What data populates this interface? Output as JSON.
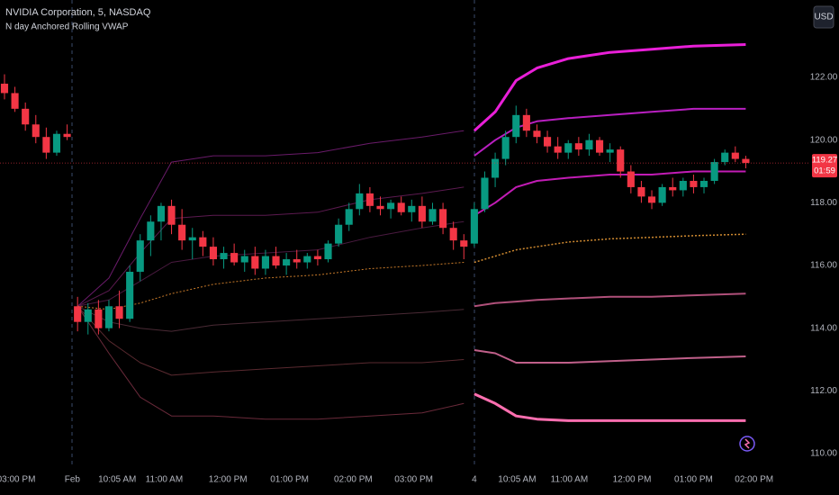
{
  "chart_data": {
    "type": "candlestick",
    "title": "NVIDIA Corporation, 5, NASDAQ",
    "indicator": "N day Anchored Rolling VWAP",
    "currency": "USD",
    "countdown": "01:59",
    "last_price": 119.27,
    "last_price_color": "#f23645",
    "up_color": "#089981",
    "down_color": "#f23645",
    "xlim": [
      -0.43,
      77
    ],
    "ylim": [
      109.54,
      124.47
    ],
    "yticks": [
      {
        "value": 110,
        "label": "110.00"
      },
      {
        "value": 112,
        "label": "112.00"
      },
      {
        "value": 114,
        "label": "114.00"
      },
      {
        "value": 116,
        "label": "116.00"
      },
      {
        "value": 118,
        "label": "118.00"
      },
      {
        "value": 120,
        "label": "120.00"
      },
      {
        "value": 122,
        "label": "122.00"
      }
    ],
    "xticks": [
      {
        "value": 0.3,
        "label": "03:00 PM"
      },
      {
        "value": 6.5,
        "label": "Feb"
      },
      {
        "value": 10.8,
        "label": "10:05 AM"
      },
      {
        "value": 15.3,
        "label": "11:00 AM"
      },
      {
        "value": 21.4,
        "label": "12:00 PM"
      },
      {
        "value": 27.3,
        "label": "01:00 PM"
      },
      {
        "value": 33.4,
        "label": "02:00 PM"
      },
      {
        "value": 39.2,
        "label": "03:00 PM"
      },
      {
        "value": 45,
        "label": "4"
      },
      {
        "value": 49.1,
        "label": "10:05 AM"
      },
      {
        "value": 54.1,
        "label": "11:00 AM"
      },
      {
        "value": 60.1,
        "label": "12:00 PM"
      },
      {
        "value": 66,
        "label": "01:00 PM"
      },
      {
        "value": 71.8,
        "label": "02:00 PM"
      }
    ],
    "candles": [
      [
        121.8,
        122.1,
        121.3,
        121.5
      ],
      [
        121.5,
        121.7,
        120.9,
        121.0
      ],
      [
        121.0,
        121.2,
        120.3,
        120.5
      ],
      [
        120.5,
        120.8,
        119.9,
        120.1
      ],
      [
        120.1,
        120.4,
        119.4,
        119.6
      ],
      [
        119.6,
        120.3,
        119.5,
        120.2
      ],
      [
        120.2,
        120.5,
        120.0,
        120.1
      ],
      [
        114.7,
        115.0,
        113.9,
        114.2
      ],
      [
        114.2,
        114.8,
        113.8,
        114.6
      ],
      [
        114.6,
        114.9,
        113.8,
        114.0
      ],
      [
        114.0,
        114.9,
        113.9,
        114.7
      ],
      [
        114.7,
        115.2,
        114.0,
        114.3
      ],
      [
        114.3,
        116.0,
        114.2,
        115.8
      ],
      [
        115.8,
        117.0,
        115.5,
        116.8
      ],
      [
        116.8,
        117.6,
        116.3,
        117.4
      ],
      [
        117.4,
        118.0,
        116.8,
        117.9
      ],
      [
        117.9,
        118.1,
        117.0,
        117.3
      ],
      [
        117.3,
        117.8,
        116.5,
        116.8
      ],
      [
        116.8,
        117.2,
        116.2,
        116.9
      ],
      [
        116.9,
        117.1,
        116.3,
        116.6
      ],
      [
        116.6,
        116.9,
        116.0,
        116.2
      ],
      [
        116.2,
        116.6,
        115.9,
        116.4
      ],
      [
        116.4,
        116.7,
        116.0,
        116.1
      ],
      [
        116.1,
        116.5,
        115.8,
        116.3
      ],
      [
        116.3,
        116.6,
        115.7,
        115.9
      ],
      [
        115.9,
        116.5,
        115.7,
        116.3
      ],
      [
        116.3,
        116.6,
        115.9,
        116.0
      ],
      [
        116.0,
        116.4,
        115.7,
        116.2
      ],
      [
        116.2,
        116.5,
        115.9,
        116.1
      ],
      [
        116.1,
        116.4,
        115.9,
        116.3
      ],
      [
        116.3,
        116.5,
        116.0,
        116.2
      ],
      [
        116.2,
        116.8,
        116.1,
        116.7
      ],
      [
        116.7,
        117.5,
        116.6,
        117.3
      ],
      [
        117.3,
        118.0,
        117.1,
        117.8
      ],
      [
        117.8,
        118.6,
        117.6,
        118.3
      ],
      [
        118.3,
        118.5,
        117.7,
        117.9
      ],
      [
        117.9,
        118.2,
        117.6,
        117.8
      ],
      [
        117.8,
        118.1,
        117.5,
        118.0
      ],
      [
        118.0,
        118.2,
        117.6,
        117.7
      ],
      [
        117.7,
        118.1,
        117.4,
        117.9
      ],
      [
        117.9,
        118.2,
        117.2,
        117.4
      ],
      [
        117.4,
        118.0,
        117.3,
        117.8
      ],
      [
        117.8,
        118.0,
        117.0,
        117.2
      ],
      [
        117.2,
        117.4,
        116.5,
        116.8
      ],
      [
        116.8,
        117.0,
        116.2,
        116.6
      ],
      [
        116.7,
        118.0,
        116.6,
        117.8
      ],
      [
        117.8,
        119.0,
        117.7,
        118.8
      ],
      [
        118.8,
        119.6,
        118.5,
        119.4
      ],
      [
        119.4,
        120.3,
        119.2,
        120.1
      ],
      [
        120.1,
        121.1,
        119.9,
        120.8
      ],
      [
        120.8,
        121.0,
        120.1,
        120.3
      ],
      [
        120.3,
        120.5,
        119.9,
        120.1
      ],
      [
        120.1,
        120.3,
        119.6,
        119.8
      ],
      [
        119.8,
        120.1,
        119.4,
        119.6
      ],
      [
        119.6,
        120.0,
        119.4,
        119.9
      ],
      [
        119.9,
        120.1,
        119.5,
        119.7
      ],
      [
        119.7,
        120.2,
        119.5,
        120.0
      ],
      [
        120.0,
        120.1,
        119.5,
        119.6
      ],
      [
        119.6,
        119.9,
        119.3,
        119.7
      ],
      [
        119.7,
        119.8,
        118.8,
        119.0
      ],
      [
        119.0,
        119.2,
        118.3,
        118.5
      ],
      [
        118.5,
        118.7,
        118.0,
        118.2
      ],
      [
        118.2,
        118.4,
        117.8,
        118.0
      ],
      [
        118.0,
        118.6,
        117.9,
        118.5
      ],
      [
        118.5,
        118.8,
        118.2,
        118.4
      ],
      [
        118.4,
        118.8,
        118.2,
        118.7
      ],
      [
        118.7,
        118.9,
        118.3,
        118.5
      ],
      [
        118.5,
        118.8,
        118.3,
        118.7
      ],
      [
        118.7,
        119.4,
        118.6,
        119.3
      ],
      [
        119.3,
        119.7,
        119.2,
        119.6
      ],
      [
        119.6,
        119.8,
        119.3,
        119.4
      ],
      [
        119.4,
        119.5,
        119.1,
        119.27
      ]
    ],
    "series": [
      {
        "color": "#6a1b6a",
        "width": 1,
        "x": [
          7,
          10,
          13,
          16,
          20,
          25,
          30,
          35,
          40,
          44
        ],
        "values": [
          114.7,
          115.6,
          117.5,
          119.3,
          119.5,
          119.5,
          119.6,
          119.9,
          120.1,
          120.3
        ]
      },
      {
        "color": "#5c1a50",
        "width": 1,
        "x": [
          7,
          10,
          13,
          16,
          20,
          25,
          30,
          35,
          40,
          44
        ],
        "values": [
          114.7,
          115.2,
          116.4,
          117.5,
          117.6,
          117.6,
          117.7,
          118.1,
          118.3,
          118.5
        ]
      },
      {
        "color": "#4a1a40",
        "width": 1,
        "x": [
          7,
          10,
          13,
          16,
          20,
          25,
          30,
          35,
          40,
          44
        ],
        "values": [
          114.7,
          114.9,
          115.5,
          116.1,
          116.3,
          116.4,
          116.5,
          116.9,
          117.2,
          117.4
        ]
      },
      {
        "color": "#c77a2a",
        "width": 1,
        "dash": true,
        "x": [
          7,
          10,
          13,
          16,
          20,
          25,
          30,
          35,
          40,
          44
        ],
        "values": [
          114.7,
          114.6,
          114.8,
          115.1,
          115.4,
          115.6,
          115.7,
          115.9,
          116.0,
          116.1
        ]
      },
      {
        "color": "#4a2a35",
        "width": 1,
        "x": [
          7,
          10,
          13,
          16,
          20,
          25,
          30,
          35,
          40,
          44
        ],
        "values": [
          114.7,
          114.2,
          114.0,
          113.9,
          114.1,
          114.2,
          114.3,
          114.4,
          114.5,
          114.6
        ]
      },
      {
        "color": "#5a2a30",
        "width": 1,
        "x": [
          7,
          10,
          13,
          16,
          20,
          25,
          30,
          35,
          40,
          44
        ],
        "values": [
          114.7,
          113.6,
          112.9,
          112.5,
          112.6,
          112.7,
          112.8,
          112.9,
          112.9,
          113.0
        ]
      },
      {
        "color": "#6a2a3a",
        "width": 1,
        "x": [
          7,
          10,
          13,
          16,
          20,
          25,
          30,
          35,
          40,
          44
        ],
        "values": [
          114.7,
          113.2,
          111.8,
          111.2,
          111.2,
          111.1,
          111.1,
          111.2,
          111.3,
          111.6
        ]
      },
      {
        "color": "#e91fd8",
        "width": 3,
        "x": [
          45,
          47,
          49,
          51,
          54,
          58,
          62,
          66,
          71
        ],
        "values": [
          120.3,
          120.9,
          121.9,
          122.3,
          122.6,
          122.8,
          122.9,
          123.0,
          123.05
        ]
      },
      {
        "color": "#b81fc0",
        "width": 2,
        "x": [
          45,
          47,
          49,
          51,
          54,
          58,
          62,
          66,
          71
        ],
        "values": [
          119.5,
          120.0,
          120.4,
          120.6,
          120.7,
          120.8,
          120.9,
          121.0,
          121.0
        ]
      },
      {
        "color": "#c21cb5",
        "width": 2,
        "x": [
          45,
          47,
          49,
          51,
          54,
          58,
          62,
          66,
          71
        ],
        "values": [
          117.6,
          118.0,
          118.5,
          118.7,
          118.8,
          118.9,
          118.9,
          119.0,
          119.0
        ]
      },
      {
        "color": "#d08a30",
        "width": 1.5,
        "dash": true,
        "x": [
          45,
          47,
          49,
          51,
          54,
          58,
          62,
          66,
          71
        ],
        "values": [
          116.1,
          116.3,
          116.5,
          116.6,
          116.75,
          116.85,
          116.9,
          116.95,
          117.0
        ]
      },
      {
        "color": "#b0507a",
        "width": 2,
        "x": [
          45,
          47,
          49,
          51,
          54,
          58,
          62,
          66,
          71
        ],
        "values": [
          114.7,
          114.8,
          114.85,
          114.9,
          114.95,
          115.0,
          115.0,
          115.05,
          115.1
        ]
      },
      {
        "color": "#c0608a",
        "width": 2,
        "x": [
          45,
          47,
          49,
          51,
          54,
          58,
          62,
          66,
          71
        ],
        "values": [
          113.3,
          113.2,
          112.9,
          112.9,
          112.9,
          112.95,
          113.0,
          113.05,
          113.1
        ]
      },
      {
        "color": "#ff6fb0",
        "width": 3,
        "x": [
          45,
          47,
          49,
          51,
          54,
          58,
          62,
          66,
          71
        ],
        "values": [
          111.9,
          111.6,
          111.2,
          111.1,
          111.05,
          111.05,
          111.05,
          111.05,
          111.05
        ]
      }
    ]
  }
}
